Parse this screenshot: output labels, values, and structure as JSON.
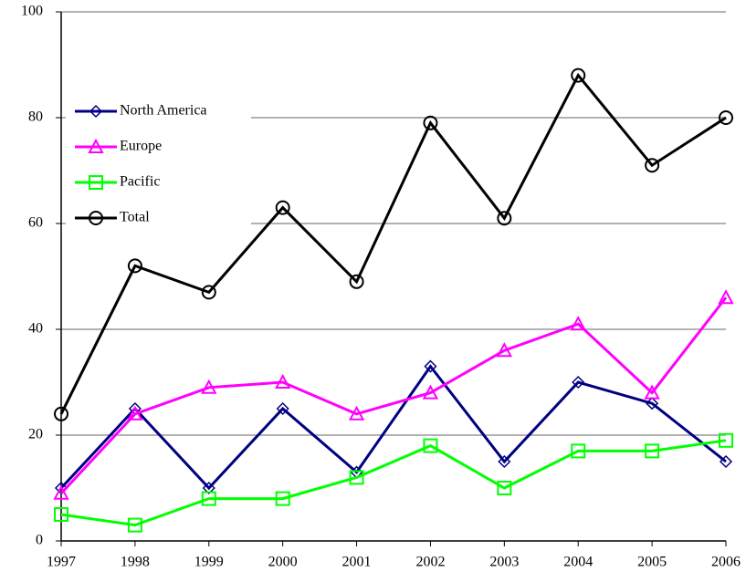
{
  "chart_data": {
    "type": "line",
    "categories": [
      "1997",
      "1998",
      "1999",
      "2000",
      "2001",
      "2002",
      "2003",
      "2004",
      "2005",
      "2006"
    ],
    "series": [
      {
        "name": "North America",
        "color": "#000080",
        "marker": "diamond",
        "values": [
          10,
          25,
          10,
          25,
          13,
          33,
          15,
          30,
          26,
          15
        ]
      },
      {
        "name": "Europe",
        "color": "#ff00ff",
        "marker": "triangle",
        "values": [
          9,
          24,
          29,
          30,
          24,
          28,
          36,
          41,
          28,
          46
        ]
      },
      {
        "name": "Pacific",
        "color": "#00ff00",
        "marker": "square",
        "values": [
          5,
          3,
          8,
          8,
          12,
          18,
          10,
          17,
          17,
          19
        ]
      },
      {
        "name": "Total",
        "color": "#000000",
        "marker": "circle",
        "values": [
          24,
          52,
          47,
          63,
          49,
          79,
          61,
          88,
          71,
          80
        ]
      }
    ],
    "ylim": [
      0,
      100
    ],
    "yticks": [
      0,
      20,
      40,
      60,
      80,
      100
    ],
    "grid": true,
    "legend": "upper left"
  }
}
